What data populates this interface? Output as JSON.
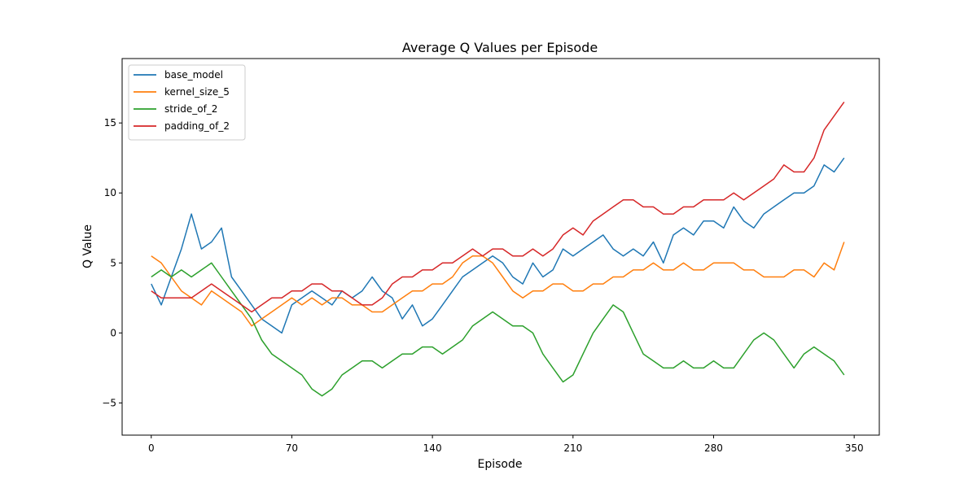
{
  "chart_data": {
    "type": "line",
    "title": "Average Q Values per Episode",
    "xlabel": "Episode",
    "ylabel": "Q Value",
    "xlim": [
      -14.5,
      362.5
    ],
    "ylim": [
      -7.3,
      19.6
    ],
    "xticks": [
      0,
      70,
      140,
      210,
      280,
      350
    ],
    "yticks": [
      -5,
      0,
      5,
      10,
      15
    ],
    "grid": false,
    "legend_position": "upper-left",
    "series": [
      {
        "name": "base_model",
        "color": "#1f77b4",
        "x": [
          0,
          5,
          10,
          15,
          20,
          25,
          30,
          35,
          40,
          45,
          50,
          55,
          60,
          65,
          70,
          75,
          80,
          85,
          90,
          95,
          100,
          105,
          110,
          115,
          120,
          125,
          130,
          135,
          140,
          145,
          150,
          155,
          160,
          165,
          170,
          175,
          180,
          185,
          190,
          195,
          200,
          205,
          210,
          215,
          220,
          225,
          230,
          235,
          240,
          245,
          250,
          255,
          260,
          265,
          270,
          275,
          280,
          285,
          290,
          295,
          300,
          305,
          310,
          315,
          320,
          325,
          330,
          335,
          340,
          345
        ],
        "y": [
          3.5,
          2.0,
          4.0,
          6.0,
          8.5,
          6.0,
          6.5,
          7.5,
          4.0,
          3.0,
          2.0,
          1.0,
          0.5,
          0.0,
          2.0,
          2.5,
          3.0,
          2.5,
          2.0,
          3.0,
          2.5,
          3.0,
          4.0,
          3.0,
          2.5,
          1.0,
          2.0,
          0.5,
          1.0,
          2.0,
          3.0,
          4.0,
          4.5,
          5.0,
          5.5,
          5.0,
          4.0,
          3.5,
          5.0,
          4.0,
          4.5,
          6.0,
          5.5,
          6.0,
          6.5,
          7.0,
          6.0,
          5.5,
          6.0,
          5.5,
          6.5,
          5.0,
          7.0,
          7.5,
          7.0,
          8.0,
          8.0,
          7.5,
          9.0,
          8.0,
          7.5,
          8.5,
          9.0,
          9.5,
          10.0,
          10.0,
          10.5,
          12.0,
          11.5,
          12.5
        ]
      },
      {
        "name": "kernel_size_5",
        "color": "#ff7f0e",
        "x": [
          0,
          5,
          10,
          15,
          20,
          25,
          30,
          35,
          40,
          45,
          50,
          55,
          60,
          65,
          70,
          75,
          80,
          85,
          90,
          95,
          100,
          105,
          110,
          115,
          120,
          125,
          130,
          135,
          140,
          145,
          150,
          155,
          160,
          165,
          170,
          175,
          180,
          185,
          190,
          195,
          200,
          205,
          210,
          215,
          220,
          225,
          230,
          235,
          240,
          245,
          250,
          255,
          260,
          265,
          270,
          275,
          280,
          285,
          290,
          295,
          300,
          305,
          310,
          315,
          320,
          325,
          330,
          335,
          340,
          345
        ],
        "y": [
          5.5,
          5.0,
          4.0,
          3.0,
          2.5,
          2.0,
          3.0,
          2.5,
          2.0,
          1.5,
          0.5,
          1.0,
          1.5,
          2.0,
          2.5,
          2.0,
          2.5,
          2.0,
          2.5,
          2.5,
          2.0,
          2.0,
          1.5,
          1.5,
          2.0,
          2.5,
          3.0,
          3.0,
          3.5,
          3.5,
          4.0,
          5.0,
          5.5,
          5.5,
          5.0,
          4.0,
          3.0,
          2.5,
          3.0,
          3.0,
          3.5,
          3.5,
          3.0,
          3.0,
          3.5,
          3.5,
          4.0,
          4.0,
          4.5,
          4.5,
          5.0,
          4.5,
          4.5,
          5.0,
          4.5,
          4.5,
          5.0,
          5.0,
          5.0,
          4.5,
          4.5,
          4.0,
          4.0,
          4.0,
          4.5,
          4.5,
          4.0,
          5.0,
          4.5,
          6.5
        ]
      },
      {
        "name": "stride_of_2",
        "color": "#2ca02c",
        "x": [
          0,
          5,
          10,
          15,
          20,
          25,
          30,
          35,
          40,
          45,
          50,
          55,
          60,
          65,
          70,
          75,
          80,
          85,
          90,
          95,
          100,
          105,
          110,
          115,
          120,
          125,
          130,
          135,
          140,
          145,
          150,
          155,
          160,
          165,
          170,
          175,
          180,
          185,
          190,
          195,
          200,
          205,
          210,
          215,
          220,
          225,
          230,
          235,
          240,
          245,
          250,
          255,
          260,
          265,
          270,
          275,
          280,
          285,
          290,
          295,
          300,
          305,
          310,
          315,
          320,
          325,
          330,
          335,
          340,
          345
        ],
        "y": [
          4.0,
          4.5,
          4.0,
          4.5,
          4.0,
          4.5,
          5.0,
          4.0,
          3.0,
          2.0,
          1.0,
          -0.5,
          -1.5,
          -2.0,
          -2.5,
          -3.0,
          -4.0,
          -4.5,
          -4.0,
          -3.0,
          -2.5,
          -2.0,
          -2.0,
          -2.5,
          -2.0,
          -1.5,
          -1.5,
          -1.0,
          -1.0,
          -1.5,
          -1.0,
          -0.5,
          0.5,
          1.0,
          1.5,
          1.0,
          0.5,
          0.5,
          0.0,
          -1.5,
          -2.5,
          -3.5,
          -3.0,
          -1.5,
          0.0,
          1.0,
          2.0,
          1.5,
          0.0,
          -1.5,
          -2.0,
          -2.5,
          -2.5,
          -2.0,
          -2.5,
          -2.5,
          -2.0,
          -2.5,
          -2.5,
          -1.5,
          -0.5,
          0.0,
          -0.5,
          -1.5,
          -2.5,
          -1.5,
          -1.0,
          -1.5,
          -2.0,
          -3.0
        ]
      },
      {
        "name": "padding_of_2",
        "color": "#d62728",
        "x": [
          0,
          5,
          10,
          15,
          20,
          25,
          30,
          35,
          40,
          45,
          50,
          55,
          60,
          65,
          70,
          75,
          80,
          85,
          90,
          95,
          100,
          105,
          110,
          115,
          120,
          125,
          130,
          135,
          140,
          145,
          150,
          155,
          160,
          165,
          170,
          175,
          180,
          185,
          190,
          195,
          200,
          205,
          210,
          215,
          220,
          225,
          230,
          235,
          240,
          245,
          250,
          255,
          260,
          265,
          270,
          275,
          280,
          285,
          290,
          295,
          300,
          305,
          310,
          315,
          320,
          325,
          330,
          335,
          340,
          345
        ],
        "y": [
          3.0,
          2.5,
          2.5,
          2.5,
          2.5,
          3.0,
          3.5,
          3.0,
          2.5,
          2.0,
          1.5,
          2.0,
          2.5,
          2.5,
          3.0,
          3.0,
          3.5,
          3.5,
          3.0,
          3.0,
          2.5,
          2.0,
          2.0,
          2.5,
          3.5,
          4.0,
          4.0,
          4.5,
          4.5,
          5.0,
          5.0,
          5.5,
          6.0,
          5.5,
          6.0,
          6.0,
          5.5,
          5.5,
          6.0,
          5.5,
          6.0,
          7.0,
          7.5,
          7.0,
          8.0,
          8.5,
          9.0,
          9.5,
          9.5,
          9.0,
          9.0,
          8.5,
          8.5,
          9.0,
          9.0,
          9.5,
          9.5,
          9.5,
          10.0,
          9.5,
          10.0,
          10.5,
          11.0,
          12.0,
          11.5,
          11.5,
          12.5,
          14.5,
          15.5,
          16.5
        ]
      }
    ]
  }
}
